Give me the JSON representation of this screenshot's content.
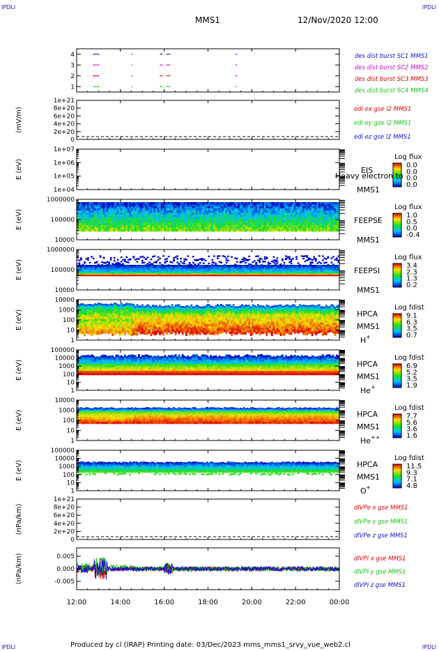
{
  "corner_labels": {
    "tl": "IPDLI",
    "tr": "IPDLI",
    "bl": "IPDLI",
    "br": "IPDLI"
  },
  "header": {
    "spacecraft": "MMS1",
    "datetime": "12/Nov/2020 12:00"
  },
  "footer": "Produced by cl (IRAP)   Printing date: 03/Dec/2023   mms_mms1_srvy_vue_web2.cl",
  "colors": {
    "red": "#d40000",
    "green": "#11c411",
    "blue": "#1010c8",
    "magenta": "#d000d0"
  },
  "chart_data": [
    {
      "id": "burst",
      "type": "scatter",
      "ylim": [
        0.5,
        4.5
      ],
      "yticks": [
        "1",
        "2",
        "3",
        "4"
      ],
      "series": [
        {
          "name": "des dist burst SC1 MMS1",
          "y": 4,
          "color": "#1010c8",
          "segments": [
            [
              12.75,
              12.85
            ],
            [
              12.9,
              13.0
            ],
            [
              14.5,
              14.52
            ],
            [
              15.8,
              15.9
            ],
            [
              16.1,
              16.25
            ],
            [
              19.25,
              19.3
            ]
          ]
        },
        {
          "name": "des dist burst SC2 MMS2",
          "y": 3,
          "color": "#d000d0",
          "segments": [
            [
              12.75,
              12.85
            ],
            [
              12.9,
              13.0
            ],
            [
              14.5,
              14.52
            ],
            [
              15.8,
              15.9
            ],
            [
              16.1,
              16.25
            ],
            [
              19.25,
              19.3
            ]
          ]
        },
        {
          "name": "des dist burst SC3 MMS3",
          "y": 2,
          "color": "#d40000",
          "segments": [
            [
              12.75,
              12.85
            ],
            [
              12.9,
              13.0
            ],
            [
              14.5,
              14.52
            ],
            [
              15.8,
              15.9
            ],
            [
              16.1,
              16.25
            ],
            [
              19.25,
              19.3
            ]
          ]
        },
        {
          "name": "des dist burst SC4 MMS4",
          "y": 1,
          "color": "#11c411",
          "segments": [
            [
              12.75,
              12.85
            ],
            [
              12.9,
              13.0
            ],
            [
              14.5,
              14.52
            ],
            [
              15.8,
              15.9
            ],
            [
              16.1,
              16.25
            ],
            [
              19.25,
              19.3
            ]
          ]
        }
      ]
    },
    {
      "id": "edi",
      "type": "line",
      "ylabel": "(mV/m)",
      "yticks": [
        "0",
        "2e+20",
        "4e+20",
        "6e+20",
        "8e+20",
        "1e+21"
      ],
      "series": [
        {
          "name": "edi ex gse l2 MMS1",
          "color": "#d40000"
        },
        {
          "name": "edi ey gse l2 MMS1",
          "color": "#11c411"
        },
        {
          "name": "edi ez gse l2 MMS1",
          "color": "#1010c8"
        }
      ]
    },
    {
      "id": "eis",
      "type": "heatmap",
      "ylabel": "E (eV)",
      "yticks": [
        "1e+04",
        "1e+05",
        "1e+06",
        "1e+07"
      ],
      "labels": [
        "EIS",
        "MMS1"
      ],
      "overlap_text": "Heavy electron to",
      "cbar_title": "Log flux",
      "cbar_ticks": [
        "0.0",
        "0.0",
        "0.0",
        "0.0"
      ]
    },
    {
      "id": "feepse",
      "type": "heatmap",
      "ylabel": "E (eV)",
      "yticks": [
        "10000",
        "100000",
        "1000000"
      ],
      "labels": [
        "FEEPSE",
        "MMS1"
      ],
      "cbar_title": "Log flux",
      "cbar_ticks": [
        "1.0",
        "0.5",
        "0.0",
        "-0.4"
      ]
    },
    {
      "id": "feepsi",
      "type": "heatmap",
      "ylabel": "E (eV)",
      "yticks": [
        "10000",
        "100000",
        "1000000"
      ],
      "labels": [
        "FEEPSI",
        "MMS1"
      ],
      "cbar_title": "Log flux",
      "cbar_ticks": [
        "3.4",
        "2.3",
        "1.3",
        "0.2"
      ]
    },
    {
      "id": "hpca_h",
      "type": "heatmap",
      "ylabel": "E (eV)",
      "yticks": [
        "1",
        "10",
        "100",
        "1000",
        "10000"
      ],
      "labels": [
        "HPCA",
        "MMS1"
      ],
      "species": "H",
      "species_sup": "+",
      "cbar_title": "Log fdist",
      "cbar_ticks": [
        "9.1",
        "6.3",
        "3.5",
        "0.7"
      ]
    },
    {
      "id": "hpca_he",
      "type": "heatmap",
      "ylabel": "E (eV)",
      "yticks": [
        "1",
        "10",
        "100",
        "1000",
        "10000",
        "100000"
      ],
      "labels": [
        "HPCA",
        "MMS1"
      ],
      "species": "He",
      "species_sup": "+",
      "cbar_title": "Log fdist",
      "cbar_ticks": [
        "6.9",
        "5.2",
        "3.5",
        "1.9"
      ]
    },
    {
      "id": "hpca_hepp",
      "type": "heatmap",
      "ylabel": "E (eV)",
      "yticks": [
        "1",
        "10",
        "100",
        "1000",
        "10000"
      ],
      "labels": [
        "HPCA",
        "MMS1"
      ],
      "species": "He",
      "species_sup": "++",
      "cbar_title": "Log fdist",
      "cbar_ticks": [
        "7.7",
        "5.6",
        "3.6",
        "1.6"
      ]
    },
    {
      "id": "hpca_o",
      "type": "heatmap",
      "ylabel": "E (eV)",
      "yticks": [
        "1",
        "10",
        "100",
        "1000",
        "10000",
        "100000"
      ],
      "labels": [
        "HPCA",
        "MMS1"
      ],
      "species": "O",
      "species_sup": "+",
      "cbar_title": "Log fdist",
      "cbar_ticks": [
        "11.5",
        "9.3",
        "7.1",
        "4.8"
      ]
    },
    {
      "id": "divpe",
      "type": "line",
      "ylabel": "(nPa/km)",
      "yticks": [
        "0",
        "2e+20",
        "4e+20",
        "6e+20",
        "8e+20",
        "1e+21"
      ],
      "series": [
        {
          "name": "dlVPe x gse MMS1",
          "color": "#d40000"
        },
        {
          "name": "dlVPe y gse MMS1",
          "color": "#11c411"
        },
        {
          "name": "dlVPe z gse MMS1",
          "color": "#1010c8"
        }
      ]
    },
    {
      "id": "divpi",
      "type": "line",
      "ylabel": "(nPa/km)",
      "yticks": [
        "-0.005",
        "0.000",
        "0.005"
      ],
      "ylim": [
        -0.0075,
        0.0075
      ],
      "series": [
        {
          "name": "dlVPi x gse MMS1",
          "color": "#d40000"
        },
        {
          "name": "dlVPi y gse MMS1",
          "color": "#11c411"
        },
        {
          "name": "dlVPi z gse MMS1",
          "color": "#1010c8"
        }
      ]
    }
  ],
  "x_axis": {
    "ticks": [
      "12:00",
      "14:00",
      "16:00",
      "18:00",
      "20:00",
      "22:00",
      "00:00"
    ],
    "range_hours": [
      12,
      24
    ]
  }
}
